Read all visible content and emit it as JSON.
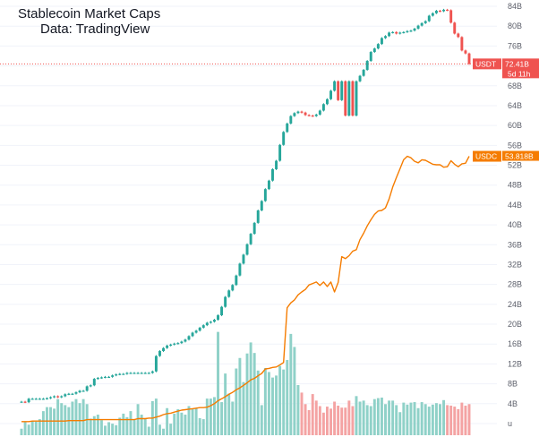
{
  "chart_data": {
    "type": "candlestick+line+volume",
    "title": "Stablecoin Market Caps",
    "subtitle": "Data: TradingView",
    "y_axis": {
      "unit": "B",
      "min": 0,
      "max": 84,
      "tick_labels": [
        "84B",
        "80B",
        "76B",
        "72B",
        "68B",
        "64B",
        "60B",
        "56B",
        "52B",
        "48B",
        "44B",
        "40B",
        "36B",
        "32B",
        "28B",
        "24B",
        "20B",
        "16B",
        "12B",
        "8B",
        "4B",
        "u"
      ],
      "tick_values": [
        84,
        80,
        76,
        72,
        68,
        64,
        60,
        56,
        52,
        48,
        44,
        40,
        36,
        32,
        28,
        24,
        20,
        16,
        12,
        8,
        4,
        0
      ]
    },
    "colors": {
      "up": "#26a69a",
      "down": "#ef5350",
      "usdc_line": "#f57c00",
      "vol_up": "#8fd1c8",
      "vol_down": "#f4a3a3",
      "price_line": "#ef5350"
    },
    "series": [
      {
        "name": "USDT",
        "type": "candlestick",
        "close": [
          4.4,
          4.3,
          5.0,
          5.0,
          5.0,
          5.0,
          5.0,
          5.1,
          5.3,
          5.5,
          5.3,
          5.5,
          5.9,
          6.0,
          6.0,
          6.3,
          6.6,
          6.6,
          7.5,
          7.7,
          9.0,
          9.2,
          9.3,
          9.4,
          9.4,
          9.7,
          9.9,
          10.0,
          10.0,
          10.2,
          10.2,
          10.2,
          10.2,
          10.2,
          10.2,
          10.2,
          10.5,
          13.6,
          14.6,
          15.2,
          15.7,
          15.9,
          16.1,
          16.2,
          16.5,
          16.9,
          17.6,
          18.3,
          18.7,
          19.3,
          19.8,
          20.3,
          20.5,
          20.9,
          21.8,
          23.5,
          25.5,
          26.8,
          27.9,
          29.8,
          32.2,
          34.0,
          36.1,
          38.2,
          40.4,
          42.9,
          44.8,
          47.2,
          48.9,
          51.2,
          52.9,
          56.1,
          58.7,
          60.4,
          61.9,
          62.5,
          62.8,
          62.6,
          62.1,
          62.0,
          61.9,
          62.2,
          63.0,
          64.3,
          65.3,
          67.0,
          68.9,
          65.1,
          68.9,
          62.0,
          68.9,
          62.0,
          68.9,
          70.0,
          71.2,
          73.0,
          74.8,
          75.5,
          76.4,
          77.6,
          78.0,
          78.7,
          78.8,
          78.5,
          78.7,
          78.8,
          79.0,
          79.1,
          79.5,
          80.1,
          80.6,
          81.0,
          82.1,
          82.6,
          83.1,
          83.0,
          83.3,
          83.2,
          80.7,
          78.5,
          77.8,
          75.1,
          74.5,
          72.4
        ],
        "last_value": "72.41B",
        "countdown": "5d 11h"
      },
      {
        "name": "USDC",
        "type": "line",
        "close": [
          0.4,
          0.4,
          0.4,
          0.5,
          0.5,
          0.5,
          0.5,
          0.5,
          0.5,
          0.5,
          0.5,
          0.5,
          0.5,
          0.6,
          0.6,
          0.6,
          0.6,
          0.6,
          0.8,
          0.8,
          0.8,
          0.8,
          0.8,
          0.8,
          0.8,
          0.8,
          0.8,
          0.8,
          0.8,
          0.8,
          0.8,
          0.8,
          1.0,
          1.0,
          1.0,
          1.1,
          1.1,
          1.3,
          1.5,
          1.8,
          2.0,
          2.1,
          2.3,
          2.5,
          2.7,
          2.8,
          2.9,
          3.0,
          3.1,
          3.2,
          3.2,
          3.3,
          3.6,
          4.0,
          4.6,
          5.0,
          5.4,
          5.9,
          6.3,
          6.8,
          7.2,
          7.7,
          8.2,
          8.8,
          9.1,
          9.6,
          10.1,
          11.0,
          11.1,
          11.3,
          11.4,
          11.8,
          12.3,
          23.3,
          24.3,
          24.9,
          25.9,
          26.5,
          27.0,
          27.9,
          28.2,
          28.5,
          27.8,
          28.5,
          27.6,
          28.5,
          26.5,
          28.4,
          33.6,
          33.2,
          33.8,
          34.7,
          35.0,
          37.0,
          38.3,
          39.8,
          41.0,
          42.1,
          42.8,
          42.9,
          43.4,
          45.2,
          47.6,
          49.5,
          51.3,
          53.1,
          53.8,
          53.5,
          52.8,
          52.5,
          53.1,
          53.0,
          52.6,
          52.2,
          52.1,
          52.1,
          51.6,
          51.7,
          52.9,
          52.2,
          51.7,
          52.3,
          52.4,
          53.8
        ],
        "last_value": "53.818B"
      }
    ],
    "volume": {
      "values": [
        1.3,
        2.7,
        2.1,
        2.8,
        2.7,
        3.2,
        4.8,
        5.6,
        5.6,
        5.3,
        7.2,
        6.4,
        6.0,
        5.6,
        6.7,
        7.2,
        6.4,
        7.2,
        6.2,
        3.3,
        3.8,
        4.1,
        3.0,
        1.9,
        2.6,
        2.3,
        2.0,
        3.5,
        4.3,
        3.6,
        4.8,
        3.2,
        6.2,
        4.1,
        3.4,
        1.7,
        6.8,
        7.3,
        2.1,
        1.3,
        5.4,
        2.3,
        4.3,
        5.2,
        4.5,
        4.1,
        5.8,
        5.2,
        5.4,
        3.4,
        3.2,
        7.3,
        7.3,
        7.6,
        20.6,
        6.6,
        12.3,
        8.3,
        6.7,
        13.3,
        15.4,
        10.6,
        16.3,
        18.5,
        16.4,
        12.9,
        6.0,
        13.4,
        12.6,
        11.5,
        11.9,
        13.8,
        13.1,
        15.0,
        20.2,
        17.6,
        10.0,
        8.5,
        6.2,
        5.0,
        8.2,
        6.9,
        5.8,
        4.5,
        5.7,
        5.3,
        6.7,
        5.9,
        5.5,
        5.5,
        6.9,
        5.8,
        7.8,
        6.7,
        6.9,
        6.0,
        5.8,
        7.2,
        7.4,
        7.5,
        6.2,
        6.9,
        6.9,
        6.0,
        4.6,
        6.5,
        6.1,
        6.5,
        6.6,
        5.4,
        6.6,
        6.2,
        5.7,
        6.1,
        6.4,
        6.2,
        7.0,
        6.0,
        5.9,
        5.7,
        5.2,
        6.5,
        5.9,
        6.2
      ],
      "down": [
        false,
        false,
        false,
        false,
        false,
        false,
        false,
        false,
        false,
        false,
        false,
        false,
        false,
        false,
        false,
        false,
        false,
        false,
        false,
        false,
        false,
        false,
        false,
        false,
        false,
        false,
        false,
        false,
        false,
        false,
        false,
        false,
        false,
        false,
        false,
        false,
        false,
        false,
        false,
        false,
        false,
        false,
        false,
        false,
        false,
        false,
        false,
        false,
        false,
        false,
        false,
        false,
        false,
        false,
        false,
        false,
        false,
        false,
        false,
        false,
        false,
        false,
        false,
        false,
        false,
        false,
        false,
        false,
        false,
        false,
        false,
        false,
        false,
        false,
        false,
        false,
        false,
        true,
        true,
        true,
        true,
        true,
        true,
        true,
        true,
        true,
        true,
        true,
        true,
        true,
        true,
        true,
        false,
        false,
        false,
        false,
        false,
        false,
        false,
        false,
        false,
        false,
        false,
        false,
        false,
        false,
        false,
        false,
        false,
        false,
        false,
        false,
        false,
        false,
        false,
        false,
        false,
        true,
        true,
        true,
        true,
        true,
        true,
        true
      ]
    },
    "price_line": {
      "series": "USDT",
      "value": 72.4
    }
  }
}
